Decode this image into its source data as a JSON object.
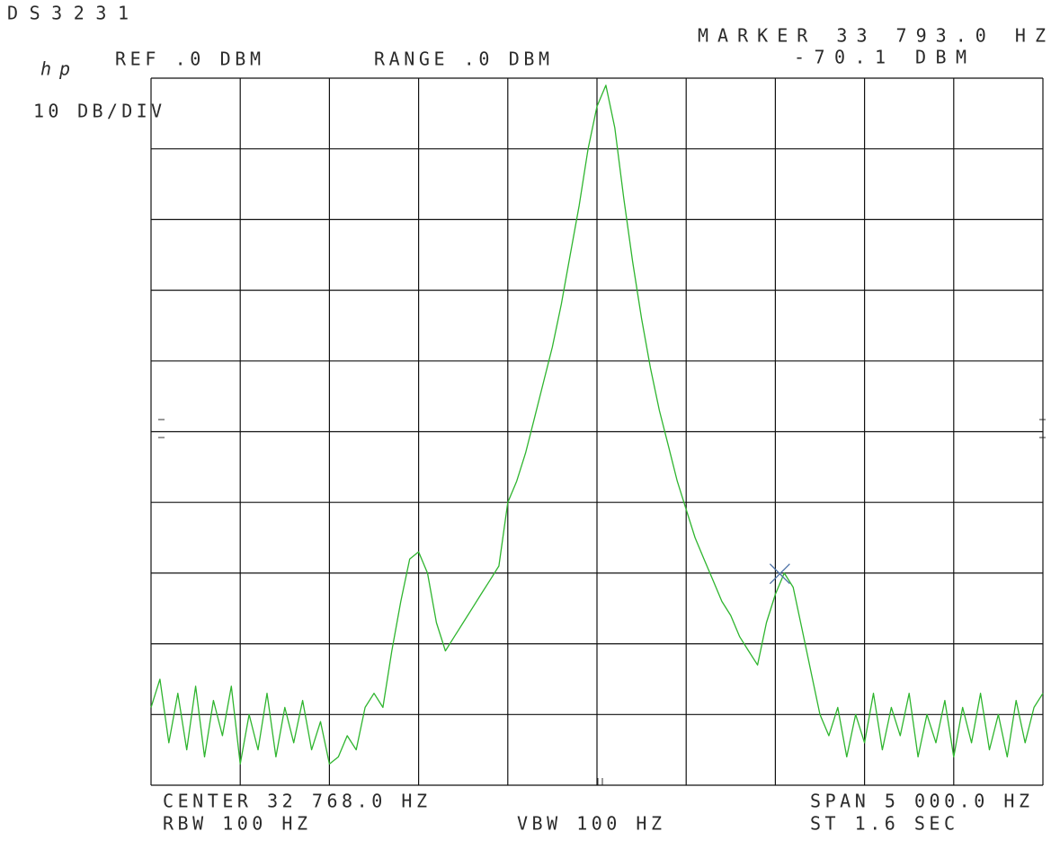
{
  "chart_data": {
    "type": "line",
    "title": "DS3231",
    "logo": "hp",
    "ref_label": "REF .0 DBM",
    "range_label": "RANGE .0 DBM",
    "scale_label": "10 DB/DIV",
    "marker_freq_label": "MARKER 33 793.0 HZ",
    "marker_level_label": "-70.1 DBM",
    "center_label": "CENTER 32 768.0 HZ",
    "span_label": "SPAN 5 000.0 HZ",
    "rbw_label": "RBW 100 HZ",
    "vbw_label": "VBW 100 HZ",
    "sweep_label": "ST 1.6 SEC",
    "marker_x": 33793,
    "marker_y": -70.1,
    "marker_color": "#4a6fa5",
    "color": "#2fb52f",
    "grid": true,
    "xlim": [
      30268,
      35268
    ],
    "ylim": [
      -100,
      0
    ],
    "xticks": [
      30268,
      30768,
      31268,
      31768,
      32268,
      32768,
      33268,
      33768,
      34268,
      34768,
      35268
    ],
    "yticks": [
      -100,
      -90,
      -80,
      -70,
      -60,
      -50,
      -40,
      -30,
      -20,
      -10,
      0
    ],
    "x": [
      30268,
      30318,
      30368,
      30418,
      30468,
      30518,
      30568,
      30618,
      30668,
      30718,
      30768,
      30818,
      30868,
      30918,
      30968,
      31018,
      31068,
      31118,
      31168,
      31218,
      31268,
      31318,
      31368,
      31418,
      31468,
      31518,
      31568,
      31618,
      31668,
      31718,
      31768,
      31818,
      31868,
      31918,
      31968,
      32018,
      32068,
      32118,
      32168,
      32218,
      32268,
      32318,
      32368,
      32418,
      32468,
      32518,
      32568,
      32618,
      32668,
      32718,
      32768,
      32818,
      32868,
      32918,
      32968,
      33018,
      33068,
      33118,
      33168,
      33218,
      33268,
      33318,
      33368,
      33418,
      33468,
      33518,
      33568,
      33618,
      33668,
      33718,
      33768,
      33818,
      33868,
      33918,
      33968,
      34018,
      34068,
      34118,
      34168,
      34218,
      34268,
      34318,
      34368,
      34418,
      34468,
      34518,
      34568,
      34618,
      34668,
      34718,
      34768,
      34818,
      34868,
      34918,
      34968,
      35018,
      35068,
      35118,
      35168,
      35218,
      35268
    ],
    "values": [
      -89,
      -85,
      -94,
      -87,
      -95,
      -86,
      -96,
      -88,
      -93,
      -86,
      -97,
      -90,
      -95,
      -87,
      -96,
      -89,
      -94,
      -88,
      -95,
      -91,
      -97,
      -96,
      -93,
      -95,
      -89,
      -87,
      -89,
      -81,
      -74,
      -68,
      -67,
      -70,
      -77,
      -81,
      -79,
      -77,
      -75,
      -73,
      -71,
      -69,
      -60,
      -57,
      -53,
      -48,
      -43,
      -38,
      -32,
      -25,
      -18,
      -10,
      -4,
      -1,
      -7,
      -17,
      -26,
      -34,
      -41,
      -47,
      -52,
      -57,
      -61,
      -65,
      -68,
      -71,
      -74,
      -76,
      -79,
      -81,
      -83,
      -77,
      -73,
      -70,
      -72,
      -78,
      -84,
      -90,
      -93,
      -89,
      -96,
      -90,
      -94,
      -87,
      -95,
      -89,
      -93,
      -87,
      -96,
      -90,
      -94,
      -88,
      -96,
      -89,
      -94,
      -87,
      -95,
      -90,
      -96,
      -88,
      -94,
      -89,
      -87
    ]
  }
}
